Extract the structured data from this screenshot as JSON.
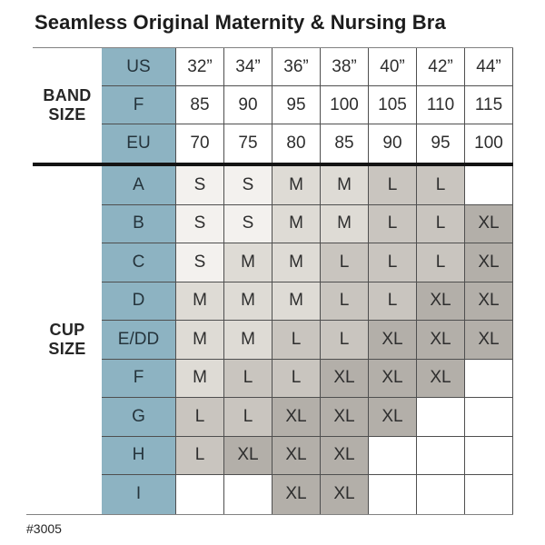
{
  "chart_data": {
    "type": "table",
    "title": "Seamless Original Maternity & Nursing Bra",
    "product_code": "#3005",
    "size_values_legend": [
      "S",
      "M",
      "L",
      "XL"
    ],
    "row_groups": [
      {
        "label": "BAND SIZE",
        "rows": [
          {
            "key": "US",
            "values": [
              "32”",
              "34”",
              "36”",
              "38”",
              "40”",
              "42”",
              "44”"
            ]
          },
          {
            "key": "F",
            "values": [
              "85",
              "90",
              "95",
              "100",
              "105",
              "110",
              "115"
            ]
          },
          {
            "key": "EU",
            "values": [
              "70",
              "75",
              "80",
              "85",
              "90",
              "95",
              "100"
            ]
          }
        ]
      },
      {
        "label": "CUP SIZE",
        "rows": [
          {
            "key": "A",
            "values": [
              "S",
              "S",
              "M",
              "M",
              "L",
              "L",
              ""
            ]
          },
          {
            "key": "B",
            "values": [
              "S",
              "S",
              "M",
              "M",
              "L",
              "L",
              "XL"
            ]
          },
          {
            "key": "C",
            "values": [
              "S",
              "M",
              "M",
              "L",
              "L",
              "L",
              "XL"
            ]
          },
          {
            "key": "D",
            "values": [
              "M",
              "M",
              "M",
              "L",
              "L",
              "XL",
              "XL"
            ]
          },
          {
            "key": "E/DD",
            "values": [
              "M",
              "M",
              "L",
              "L",
              "XL",
              "XL",
              "XL"
            ]
          },
          {
            "key": "F",
            "values": [
              "M",
              "L",
              "L",
              "XL",
              "XL",
              "XL",
              ""
            ]
          },
          {
            "key": "G",
            "values": [
              "L",
              "L",
              "XL",
              "XL",
              "XL",
              "",
              ""
            ]
          },
          {
            "key": "H",
            "values": [
              "L",
              "XL",
              "XL",
              "XL",
              "",
              "",
              ""
            ]
          },
          {
            "key": "I",
            "values": [
              "",
              "",
              "XL",
              "XL",
              "",
              "",
              ""
            ]
          }
        ]
      }
    ]
  },
  "colors": {
    "key_column_bg": "#8db3c2",
    "size_fill_S": "#f3f1ee",
    "size_fill_M": "#dedbd5",
    "size_fill_L": "#c9c5bf",
    "size_fill_XL": "#b3afa9",
    "empty_fill": "#ffffff"
  }
}
